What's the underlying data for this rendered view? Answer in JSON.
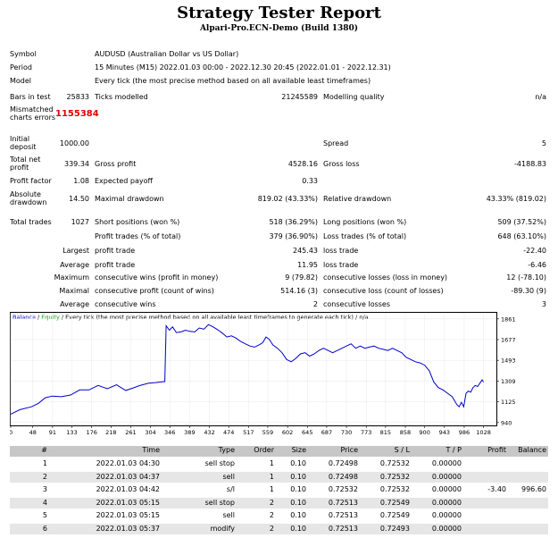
{
  "header": {
    "title": "Strategy Tester Report",
    "subtitle": "Alpari-Pro.ECN-Demo (Build 1380)"
  },
  "settings": {
    "symbol_label": "Symbol",
    "symbol": "AUDUSD (Australian Dollar vs US Dollar)",
    "period_label": "Period",
    "period": "15 Minutes (M15) 2022.01.03 00:00 - 2022.12.30 20:45 (2022.01.01 - 2022.12.31)",
    "model_label": "Model",
    "model": "Every tick (the most precise method based on all available least timeframes)",
    "bars_label": "Bars in test",
    "bars": "25833",
    "ticks_label": "Ticks modelled",
    "ticks": "21245589",
    "quality_label": "Modelling quality",
    "quality": "n/a",
    "mismatch_label_1": "Mismatched",
    "mismatch_label_2": "charts errors",
    "mismatch": "1155384",
    "deposit_label_1": "Initial",
    "deposit_label_2": "deposit",
    "deposit": "1000.00",
    "spread_label": "Spread",
    "spread": "5"
  },
  "stats": {
    "net_label_1": "Total net",
    "net_label_2": "profit",
    "net": "339.34",
    "gross_profit_label": "Gross profit",
    "gross_profit": "4528.16",
    "gross_loss_label": "Gross loss",
    "gross_loss": "-4188.83",
    "pf_label": "Profit factor",
    "pf": "1.08",
    "ep_label": "Expected payoff",
    "ep": "0.33",
    "abs_dd_label_1": "Absolute",
    "abs_dd_label_2": "drawdown",
    "abs_dd": "14.50",
    "max_dd_label": "Maximal drawdown",
    "max_dd": "819.02 (43.33%)",
    "rel_dd_label": "Relative drawdown",
    "rel_dd": "43.33% (819.02)",
    "trades_label": "Total trades",
    "trades": "1027",
    "short_label": "Short positions (won %)",
    "short": "518 (36.29%)",
    "long_label": "Long positions (won %)",
    "long": "509 (37.52%)",
    "pt_label": "Profit trades (% of total)",
    "pt": "379 (36.90%)",
    "lt_label": "Loss trades (% of total)",
    "lt": "648 (63.10%)",
    "largest_label": "Largest",
    "largest_pt_label": "profit trade",
    "largest_pt": "245.43",
    "largest_lt_label": "loss trade",
    "largest_lt": "-22.40",
    "average_label": "Average",
    "average_pt_label": "profit trade",
    "average_pt": "11.95",
    "average_lt_label": "loss trade",
    "average_lt": "-6.46",
    "maximum_label": "Maximum",
    "max_cw_label": "consecutive wins (profit in money)",
    "max_cw": "9 (79.82)",
    "max_cl_label": "consecutive losses (loss in money)",
    "max_cl": "12 (-78.10)",
    "maximal_label": "Maximal",
    "maximal_cp_label": "consecutive profit (count of wins)",
    "maximal_cp": "514.16 (3)",
    "maximal_cl_label": "consecutive loss (count of losses)",
    "maximal_cl": "-89.30 (9)",
    "average2_label": "Average",
    "avg_cw_label": "consecutive wins",
    "avg_cw": "2",
    "avg_cl_label": "consecutive losses",
    "avg_cl": "3"
  },
  "chart_data": {
    "type": "line",
    "legend_balance": "Balance",
    "legend_sep": " / ",
    "legend_equity": "Equity",
    "legend_rest": " / Every tick (the most precise method based on all available least timeframes to generate each tick) / n/a",
    "x_ticks": [
      0,
      48,
      91,
      133,
      176,
      218,
      261,
      304,
      346,
      389,
      432,
      474,
      517,
      559,
      602,
      645,
      687,
      730,
      773,
      815,
      858,
      900,
      943,
      986,
      1028
    ],
    "y_ticks": [
      940,
      1125,
      1309,
      1493,
      1677,
      1861
    ],
    "xlim": [
      0,
      1056
    ],
    "ylim": [
      915,
      1915
    ],
    "series": [
      {
        "name": "Balance",
        "color": "#0000cc",
        "x": [
          0,
          20,
          45,
          60,
          75,
          90,
          110,
          130,
          150,
          170,
          190,
          210,
          230,
          250,
          265,
          280,
          300,
          315,
          325,
          335,
          338,
          345,
          352,
          360,
          370,
          380,
          390,
          400,
          410,
          420,
          430,
          440,
          450,
          460,
          470,
          480,
          490,
          500,
          510,
          520,
          530,
          540,
          548,
          555,
          562,
          570,
          580,
          590,
          600,
          610,
          620,
          630,
          640,
          650,
          660,
          670,
          680,
          690,
          700,
          710,
          720,
          730,
          740,
          750,
          760,
          770,
          780,
          790,
          800,
          810,
          820,
          830,
          840,
          850,
          860,
          870,
          880,
          890,
          900,
          910,
          920,
          930,
          940,
          950,
          960,
          970,
          975,
          980,
          985,
          990,
          995,
          1000,
          1005,
          1010,
          1015,
          1020,
          1025,
          1028
        ],
        "y": [
          1015,
          1055,
          1080,
          1110,
          1160,
          1175,
          1170,
          1185,
          1230,
          1230,
          1270,
          1240,
          1275,
          1225,
          1245,
          1268,
          1290,
          1295,
          1300,
          1305,
          1800,
          1760,
          1790,
          1740,
          1745,
          1760,
          1750,
          1745,
          1780,
          1770,
          1810,
          1790,
          1765,
          1735,
          1700,
          1710,
          1690,
          1660,
          1640,
          1620,
          1610,
          1630,
          1650,
          1700,
          1680,
          1630,
          1600,
          1560,
          1500,
          1480,
          1510,
          1550,
          1560,
          1530,
          1550,
          1580,
          1600,
          1580,
          1560,
          1580,
          1600,
          1620,
          1640,
          1600,
          1620,
          1600,
          1610,
          1620,
          1600,
          1590,
          1580,
          1600,
          1580,
          1560,
          1520,
          1500,
          1480,
          1470,
          1450,
          1400,
          1300,
          1250,
          1230,
          1200,
          1170,
          1100,
          1080,
          1120,
          1080,
          1200,
          1220,
          1210,
          1250,
          1270,
          1260,
          1290,
          1320,
          1300
        ]
      },
      {
        "name": "Equity",
        "color": "#009900",
        "x": [],
        "y": []
      }
    ]
  },
  "table": {
    "headers": [
      "#",
      "Time",
      "Type",
      "Order",
      "Size",
      "Price",
      "S / L",
      "T / P",
      "Profit",
      "Balance"
    ],
    "rows": [
      [
        "1",
        "2022.01.03 04:30",
        "sell stop",
        "1",
        "0.10",
        "0.72498",
        "0.72532",
        "0.00000",
        "",
        ""
      ],
      [
        "2",
        "2022.01.03 04:37",
        "sell",
        "1",
        "0.10",
        "0.72498",
        "0.72532",
        "0.00000",
        "",
        ""
      ],
      [
        "3",
        "2022.01.03 04:42",
        "s/l",
        "1",
        "0.10",
        "0.72532",
        "0.72532",
        "0.00000",
        "-3.40",
        "996.60"
      ],
      [
        "4",
        "2022.01.03 05:15",
        "sell stop",
        "2",
        "0.10",
        "0.72513",
        "0.72549",
        "0.00000",
        "",
        ""
      ],
      [
        "5",
        "2022.01.03 05:15",
        "sell",
        "2",
        "0.10",
        "0.72513",
        "0.72549",
        "0.00000",
        "",
        ""
      ],
      [
        "6",
        "2022.01.03 05:37",
        "modify",
        "2",
        "0.10",
        "0.72513",
        "0.72493",
        "0.00000",
        "",
        ""
      ]
    ]
  }
}
